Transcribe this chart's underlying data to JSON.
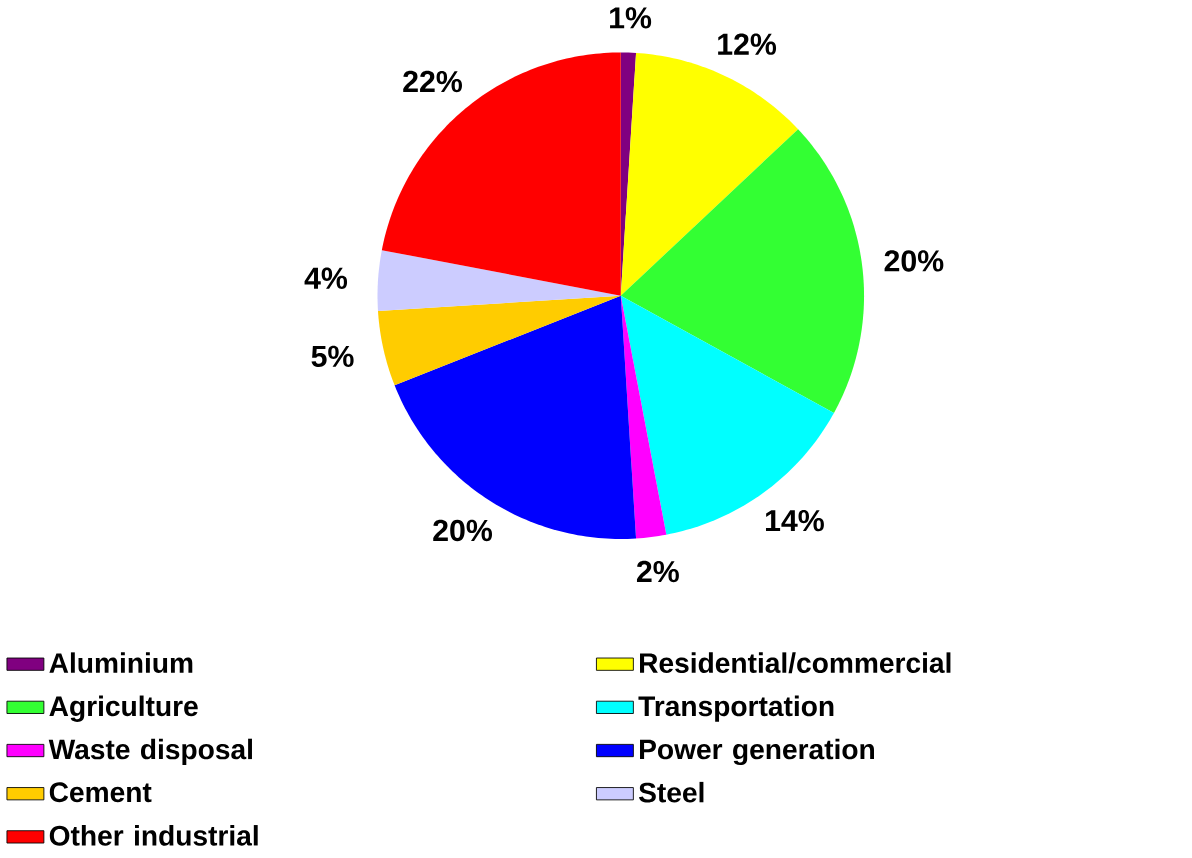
{
  "chart_data": {
    "type": "pie",
    "categories": [
      "Aluminium",
      "Residential/commercial",
      "Agriculture",
      "Transportation",
      "Waste disposal",
      "Power generation",
      "Cement",
      "Steel",
      "Other industrial"
    ],
    "values": [
      1,
      12,
      20,
      14,
      2,
      20,
      5,
      4,
      22
    ],
    "value_labels": [
      "1%",
      "12%",
      "20%",
      "14%",
      "2%",
      "20%",
      "5%",
      "4%",
      "22%"
    ],
    "colors": [
      "#800080",
      "#ffff00",
      "#33ff33",
      "#00ffff",
      "#ff00ff",
      "#0000ff",
      "#ffcc00",
      "#ccccff",
      "#ff0000"
    ],
    "legend": "bottom"
  }
}
